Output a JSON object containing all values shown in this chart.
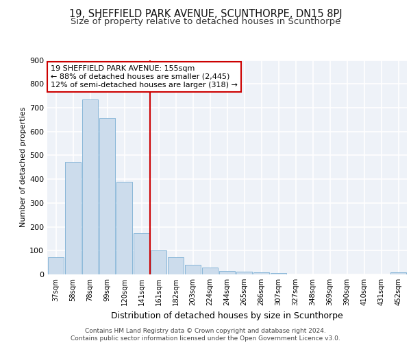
{
  "title1": "19, SHEFFIELD PARK AVENUE, SCUNTHORPE, DN15 8PJ",
  "title2": "Size of property relative to detached houses in Scunthorpe",
  "xlabel": "Distribution of detached houses by size in Scunthorpe",
  "ylabel": "Number of detached properties",
  "categories": [
    "37sqm",
    "58sqm",
    "78sqm",
    "99sqm",
    "120sqm",
    "141sqm",
    "161sqm",
    "182sqm",
    "203sqm",
    "224sqm",
    "244sqm",
    "265sqm",
    "286sqm",
    "307sqm",
    "327sqm",
    "348sqm",
    "369sqm",
    "390sqm",
    "410sqm",
    "431sqm",
    "452sqm"
  ],
  "values": [
    72,
    473,
    735,
    656,
    390,
    172,
    100,
    73,
    40,
    28,
    13,
    11,
    10,
    6,
    0,
    0,
    0,
    0,
    0,
    0,
    8
  ],
  "bar_color": "#ccdcec",
  "bar_edge_color": "#7aafd4",
  "vline_x": 5.5,
  "vline_color": "#cc0000",
  "annotation_line1": "19 SHEFFIELD PARK AVENUE: 155sqm",
  "annotation_line2": "← 88% of detached houses are smaller (2,445)",
  "annotation_line3": "12% of semi-detached houses are larger (318) →",
  "annotation_box_color": "#ffffff",
  "annotation_box_edge": "#cc0000",
  "footer": "Contains HM Land Registry data © Crown copyright and database right 2024.\nContains public sector information licensed under the Open Government Licence v3.0.",
  "ylim": [
    0,
    900
  ],
  "yticks": [
    0,
    100,
    200,
    300,
    400,
    500,
    600,
    700,
    800,
    900
  ],
  "bg_color": "#eef2f8",
  "grid_color": "#ffffff",
  "title1_fontsize": 10.5,
  "title2_fontsize": 9.5,
  "xlabel_fontsize": 9,
  "ylabel_fontsize": 8,
  "footer_fontsize": 6.5
}
